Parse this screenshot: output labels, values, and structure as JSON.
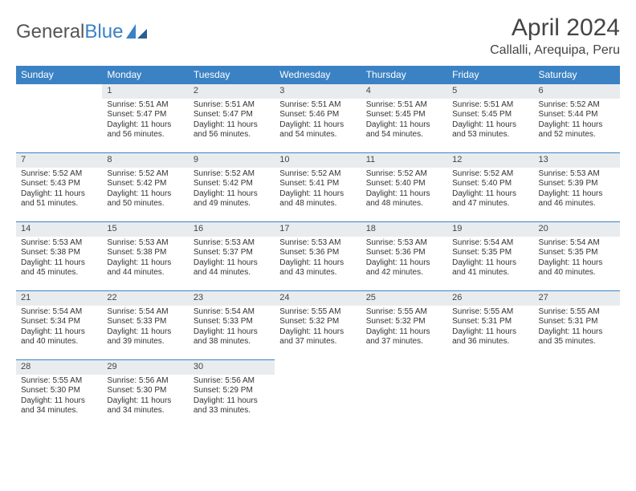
{
  "logo": {
    "text1": "General",
    "text2": "Blue"
  },
  "title": "April 2024",
  "location": "Callalli, Arequipa, Peru",
  "colors": {
    "header_bg": "#3b82c4",
    "daynum_bg": "#e9ecef",
    "border": "#3b82c4"
  },
  "weekdays": [
    "Sunday",
    "Monday",
    "Tuesday",
    "Wednesday",
    "Thursday",
    "Friday",
    "Saturday"
  ],
  "weeks": [
    [
      null,
      {
        "n": "1",
        "sr": "Sunrise: 5:51 AM",
        "ss": "Sunset: 5:47 PM",
        "d1": "Daylight: 11 hours",
        "d2": "and 56 minutes."
      },
      {
        "n": "2",
        "sr": "Sunrise: 5:51 AM",
        "ss": "Sunset: 5:47 PM",
        "d1": "Daylight: 11 hours",
        "d2": "and 56 minutes."
      },
      {
        "n": "3",
        "sr": "Sunrise: 5:51 AM",
        "ss": "Sunset: 5:46 PM",
        "d1": "Daylight: 11 hours",
        "d2": "and 54 minutes."
      },
      {
        "n": "4",
        "sr": "Sunrise: 5:51 AM",
        "ss": "Sunset: 5:45 PM",
        "d1": "Daylight: 11 hours",
        "d2": "and 54 minutes."
      },
      {
        "n": "5",
        "sr": "Sunrise: 5:51 AM",
        "ss": "Sunset: 5:45 PM",
        "d1": "Daylight: 11 hours",
        "d2": "and 53 minutes."
      },
      {
        "n": "6",
        "sr": "Sunrise: 5:52 AM",
        "ss": "Sunset: 5:44 PM",
        "d1": "Daylight: 11 hours",
        "d2": "and 52 minutes."
      }
    ],
    [
      {
        "n": "7",
        "sr": "Sunrise: 5:52 AM",
        "ss": "Sunset: 5:43 PM",
        "d1": "Daylight: 11 hours",
        "d2": "and 51 minutes."
      },
      {
        "n": "8",
        "sr": "Sunrise: 5:52 AM",
        "ss": "Sunset: 5:42 PM",
        "d1": "Daylight: 11 hours",
        "d2": "and 50 minutes."
      },
      {
        "n": "9",
        "sr": "Sunrise: 5:52 AM",
        "ss": "Sunset: 5:42 PM",
        "d1": "Daylight: 11 hours",
        "d2": "and 49 minutes."
      },
      {
        "n": "10",
        "sr": "Sunrise: 5:52 AM",
        "ss": "Sunset: 5:41 PM",
        "d1": "Daylight: 11 hours",
        "d2": "and 48 minutes."
      },
      {
        "n": "11",
        "sr": "Sunrise: 5:52 AM",
        "ss": "Sunset: 5:40 PM",
        "d1": "Daylight: 11 hours",
        "d2": "and 48 minutes."
      },
      {
        "n": "12",
        "sr": "Sunrise: 5:52 AM",
        "ss": "Sunset: 5:40 PM",
        "d1": "Daylight: 11 hours",
        "d2": "and 47 minutes."
      },
      {
        "n": "13",
        "sr": "Sunrise: 5:53 AM",
        "ss": "Sunset: 5:39 PM",
        "d1": "Daylight: 11 hours",
        "d2": "and 46 minutes."
      }
    ],
    [
      {
        "n": "14",
        "sr": "Sunrise: 5:53 AM",
        "ss": "Sunset: 5:38 PM",
        "d1": "Daylight: 11 hours",
        "d2": "and 45 minutes."
      },
      {
        "n": "15",
        "sr": "Sunrise: 5:53 AM",
        "ss": "Sunset: 5:38 PM",
        "d1": "Daylight: 11 hours",
        "d2": "and 44 minutes."
      },
      {
        "n": "16",
        "sr": "Sunrise: 5:53 AM",
        "ss": "Sunset: 5:37 PM",
        "d1": "Daylight: 11 hours",
        "d2": "and 44 minutes."
      },
      {
        "n": "17",
        "sr": "Sunrise: 5:53 AM",
        "ss": "Sunset: 5:36 PM",
        "d1": "Daylight: 11 hours",
        "d2": "and 43 minutes."
      },
      {
        "n": "18",
        "sr": "Sunrise: 5:53 AM",
        "ss": "Sunset: 5:36 PM",
        "d1": "Daylight: 11 hours",
        "d2": "and 42 minutes."
      },
      {
        "n": "19",
        "sr": "Sunrise: 5:54 AM",
        "ss": "Sunset: 5:35 PM",
        "d1": "Daylight: 11 hours",
        "d2": "and 41 minutes."
      },
      {
        "n": "20",
        "sr": "Sunrise: 5:54 AM",
        "ss": "Sunset: 5:35 PM",
        "d1": "Daylight: 11 hours",
        "d2": "and 40 minutes."
      }
    ],
    [
      {
        "n": "21",
        "sr": "Sunrise: 5:54 AM",
        "ss": "Sunset: 5:34 PM",
        "d1": "Daylight: 11 hours",
        "d2": "and 40 minutes."
      },
      {
        "n": "22",
        "sr": "Sunrise: 5:54 AM",
        "ss": "Sunset: 5:33 PM",
        "d1": "Daylight: 11 hours",
        "d2": "and 39 minutes."
      },
      {
        "n": "23",
        "sr": "Sunrise: 5:54 AM",
        "ss": "Sunset: 5:33 PM",
        "d1": "Daylight: 11 hours",
        "d2": "and 38 minutes."
      },
      {
        "n": "24",
        "sr": "Sunrise: 5:55 AM",
        "ss": "Sunset: 5:32 PM",
        "d1": "Daylight: 11 hours",
        "d2": "and 37 minutes."
      },
      {
        "n": "25",
        "sr": "Sunrise: 5:55 AM",
        "ss": "Sunset: 5:32 PM",
        "d1": "Daylight: 11 hours",
        "d2": "and 37 minutes."
      },
      {
        "n": "26",
        "sr": "Sunrise: 5:55 AM",
        "ss": "Sunset: 5:31 PM",
        "d1": "Daylight: 11 hours",
        "d2": "and 36 minutes."
      },
      {
        "n": "27",
        "sr": "Sunrise: 5:55 AM",
        "ss": "Sunset: 5:31 PM",
        "d1": "Daylight: 11 hours",
        "d2": "and 35 minutes."
      }
    ],
    [
      {
        "n": "28",
        "sr": "Sunrise: 5:55 AM",
        "ss": "Sunset: 5:30 PM",
        "d1": "Daylight: 11 hours",
        "d2": "and 34 minutes."
      },
      {
        "n": "29",
        "sr": "Sunrise: 5:56 AM",
        "ss": "Sunset: 5:30 PM",
        "d1": "Daylight: 11 hours",
        "d2": "and 34 minutes."
      },
      {
        "n": "30",
        "sr": "Sunrise: 5:56 AM",
        "ss": "Sunset: 5:29 PM",
        "d1": "Daylight: 11 hours",
        "d2": "and 33 minutes."
      },
      null,
      null,
      null,
      null
    ]
  ]
}
